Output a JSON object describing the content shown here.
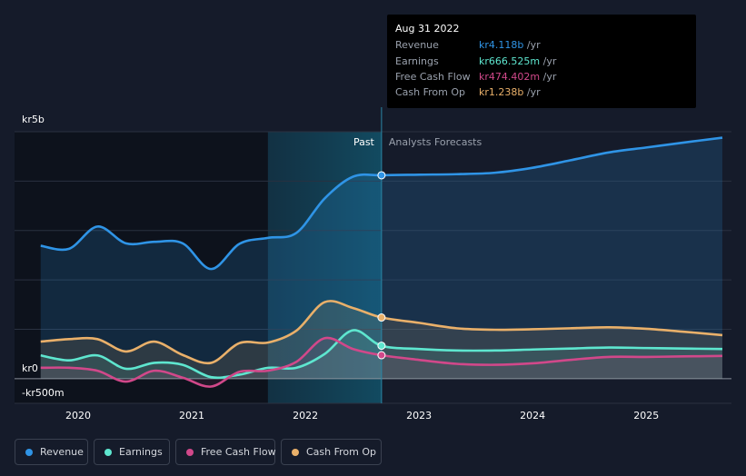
{
  "chart_data": {
    "type": "area",
    "currency_unit": "kr",
    "x": [
      2019.67,
      2019.92,
      2020.17,
      2020.42,
      2020.67,
      2020.92,
      2021.17,
      2021.42,
      2021.67,
      2021.92,
      2022.17,
      2022.42,
      2022.67,
      2023.0,
      2023.33,
      2023.67,
      2024.0,
      2024.33,
      2024.67,
      2025.0,
      2025.33,
      2025.67
    ],
    "series": [
      {
        "key": "revenue",
        "name": "Revenue",
        "color": "#2f94e6",
        "values": [
          2.69,
          2.63,
          3.08,
          2.74,
          2.77,
          2.74,
          2.22,
          2.73,
          2.85,
          2.95,
          3.65,
          4.09,
          4.118,
          4.13,
          4.14,
          4.17,
          4.27,
          4.42,
          4.58,
          4.68,
          4.78,
          4.88
        ]
      },
      {
        "key": "earnings",
        "name": "Earnings",
        "color": "#5ee6cf",
        "values": [
          0.47,
          0.37,
          0.47,
          0.2,
          0.32,
          0.28,
          0.03,
          0.08,
          0.22,
          0.22,
          0.5,
          0.98,
          0.6665,
          0.6,
          0.57,
          0.57,
          0.59,
          0.61,
          0.63,
          0.62,
          0.61,
          0.6
        ]
      },
      {
        "key": "fcf",
        "name": "Free Cash Flow",
        "color": "#d1488a",
        "values": [
          0.22,
          0.22,
          0.16,
          -0.06,
          0.16,
          0.02,
          -0.16,
          0.14,
          0.16,
          0.34,
          0.82,
          0.6,
          0.4744,
          0.38,
          0.3,
          0.28,
          0.31,
          0.38,
          0.44,
          0.44,
          0.45,
          0.46
        ]
      },
      {
        "key": "cfo",
        "name": "Cash From Op",
        "color": "#e9b06a",
        "values": [
          0.75,
          0.8,
          0.8,
          0.55,
          0.75,
          0.48,
          0.32,
          0.72,
          0.73,
          0.97,
          1.55,
          1.43,
          1.238,
          1.13,
          1.02,
          0.99,
          1.0,
          1.02,
          1.04,
          1.01,
          0.95,
          0.88
        ]
      }
    ],
    "ylim": [
      -0.5,
      5.0
    ],
    "y_ticks": [
      {
        "value": 5.0,
        "label": "kr5b"
      },
      {
        "value": 0,
        "label": "kr0"
      },
      {
        "value": -0.5,
        "label": "-kr500m"
      }
    ],
    "xlim": [
      2019.44,
      2025.75
    ],
    "x_ticks": [
      {
        "value": 2020,
        "label": "2020"
      },
      {
        "value": 2021,
        "label": "2021"
      },
      {
        "value": 2022,
        "label": "2022"
      },
      {
        "value": 2023,
        "label": "2023"
      },
      {
        "value": 2024,
        "label": "2024"
      },
      {
        "value": 2025,
        "label": "2025"
      }
    ],
    "past_highlight_start": 2021.67,
    "divider_x": 2022.67,
    "past_label": "Past",
    "forecast_label": "Analysts Forecasts"
  },
  "tooltip": {
    "date": "Aug 31 2022",
    "unit": "/yr",
    "rows": [
      {
        "label": "Revenue",
        "value": "kr4.118b",
        "color": "#2f94e6"
      },
      {
        "label": "Earnings",
        "value": "kr666.525m",
        "color": "#5ee6cf"
      },
      {
        "label": "Free Cash Flow",
        "value": "kr474.402m",
        "color": "#d1488a"
      },
      {
        "label": "Cash From Op",
        "value": "kr1.238b",
        "color": "#e9b06a"
      }
    ]
  },
  "legend": [
    {
      "label": "Revenue",
      "color": "#2f94e6"
    },
    {
      "label": "Earnings",
      "color": "#5ee6cf"
    },
    {
      "label": "Free Cash Flow",
      "color": "#d1488a"
    },
    {
      "label": "Cash From Op",
      "color": "#e9b06a"
    }
  ]
}
